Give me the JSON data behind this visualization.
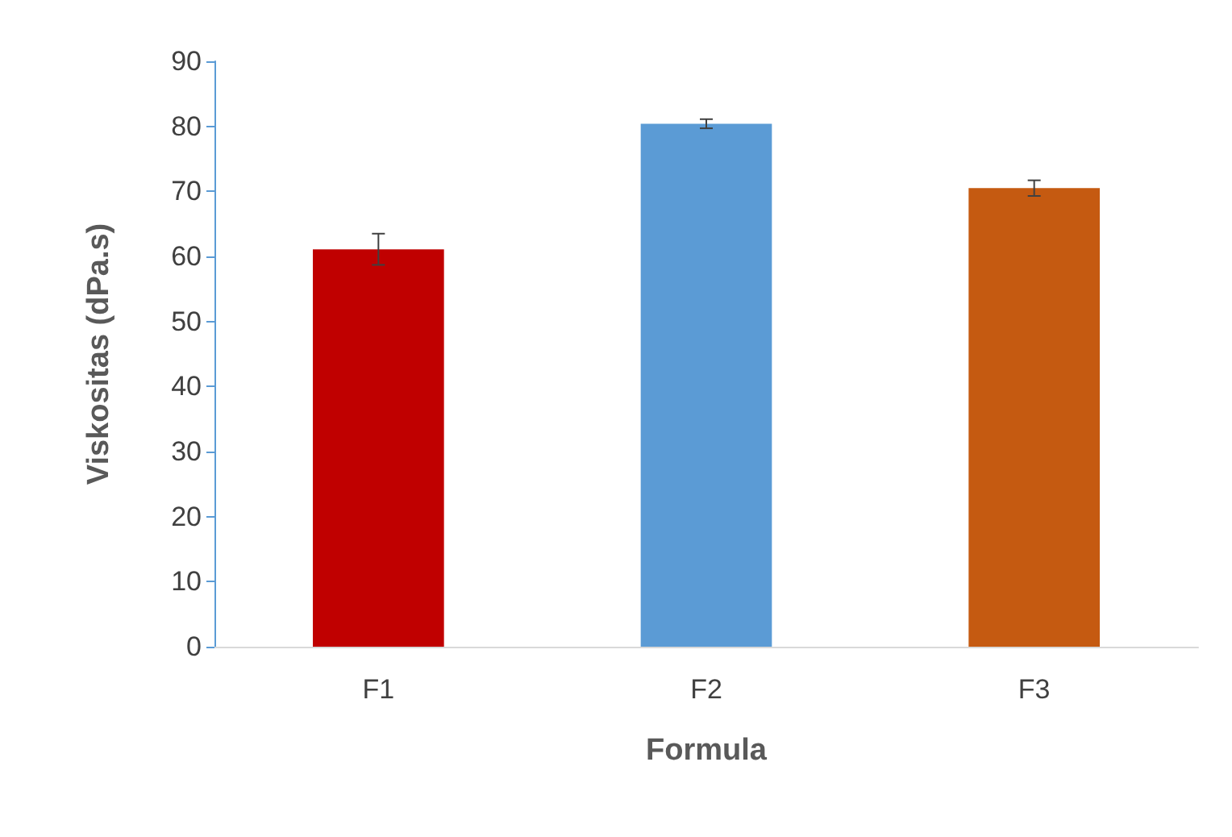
{
  "chart_data": {
    "type": "bar",
    "xlabel": "Formula",
    "ylabel": "Viskositas (dPa.s)",
    "categories": [
      "F1",
      "F2",
      "F3"
    ],
    "values": [
      61.1,
      80.4,
      70.5
    ],
    "colors": [
      "#c00000",
      "#5b9bd5",
      "#c55a11"
    ],
    "errors": [
      2.4,
      0.7,
      1.2
    ],
    "ylim": [
      0,
      90
    ],
    "yticks": [
      0,
      10,
      20,
      30,
      40,
      50,
      60,
      70,
      80,
      90
    ],
    "grid": false
  }
}
